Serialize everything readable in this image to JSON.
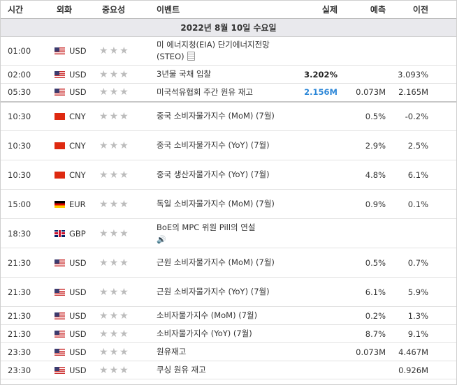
{
  "header": {
    "time": "시간",
    "currency": "외화",
    "importance": "중요성",
    "event": "이벤트",
    "actual": "실제",
    "forecast": "예측",
    "previous": "이전"
  },
  "date_label": "2022년 8월 10일 수요일",
  "icons": {
    "star": "★",
    "doc": "document-icon",
    "speaker": "🔊"
  },
  "rows": [
    {
      "time": "01:00",
      "cur": "USD",
      "flag": "us",
      "stars": 3,
      "event": "미 에너지청(EIA) 단기에너지전망(STEO)",
      "actual": "",
      "forecast": "",
      "previous": "",
      "icon": "doc"
    },
    {
      "time": "02:00",
      "cur": "USD",
      "flag": "us",
      "stars": 2,
      "event": "3년물 국채 입찰",
      "actual": "3.202%",
      "actual_color": "dark",
      "forecast": "",
      "previous": "3.093%"
    },
    {
      "time": "05:30",
      "cur": "USD",
      "flag": "us",
      "stars": 2,
      "event": "미국석유협회 주간 원유 재고",
      "actual": "2.156M",
      "actual_color": "blue",
      "forecast": "0.073M",
      "previous": "2.165M"
    },
    {
      "time": "10:30",
      "cur": "CNY",
      "flag": "cn",
      "stars": 2,
      "event": "중국 소비자물가지수 (MoM) (7월)",
      "actual": "",
      "forecast": "0.5%",
      "previous": "-0.2%"
    },
    {
      "time": "10:30",
      "cur": "CNY",
      "flag": "cn",
      "stars": 2,
      "event": "중국 소비자물가지수 (YoY) (7월)",
      "actual": "",
      "forecast": "2.9%",
      "previous": "2.5%"
    },
    {
      "time": "10:30",
      "cur": "CNY",
      "flag": "cn",
      "stars": 2,
      "event": "중국 생산자물가지수 (YoY) (7월)",
      "actual": "",
      "forecast": "4.8%",
      "previous": "6.1%"
    },
    {
      "time": "15:00",
      "cur": "EUR",
      "flag": "de",
      "stars": 2,
      "event": "독일 소비자물가지수 (MoM) (7월)",
      "actual": "",
      "forecast": "0.9%",
      "previous": "0.1%"
    },
    {
      "time": "18:30",
      "cur": "GBP",
      "flag": "gb",
      "stars": 2,
      "event": "BoE의 MPC 위원 Pill의 연설",
      "actual": "",
      "forecast": "",
      "previous": "",
      "icon": "speaker"
    },
    {
      "time": "21:30",
      "cur": "USD",
      "flag": "us",
      "stars": 3,
      "event": "근원 소비자물가지수 (MoM) (7월)",
      "actual": "",
      "forecast": "0.5%",
      "previous": "0.7%"
    },
    {
      "time": "21:30",
      "cur": "USD",
      "flag": "us",
      "stars": 3,
      "event": "근원 소비자물가지수 (YoY) (7월)",
      "actual": "",
      "forecast": "6.1%",
      "previous": "5.9%"
    },
    {
      "time": "21:30",
      "cur": "USD",
      "flag": "us",
      "stars": 3,
      "event": "소비자물가지수 (MoM) (7월)",
      "actual": "",
      "forecast": "0.2%",
      "previous": "1.3%"
    },
    {
      "time": "21:30",
      "cur": "USD",
      "flag": "us",
      "stars": 3,
      "event": "소비자물가지수 (YoY) (7월)",
      "actual": "",
      "forecast": "8.7%",
      "previous": "9.1%"
    },
    {
      "time": "23:30",
      "cur": "USD",
      "flag": "us",
      "stars": 3,
      "event": "원유재고",
      "actual": "",
      "forecast": "0.073M",
      "previous": "4.467M"
    },
    {
      "time": "23:30",
      "cur": "USD",
      "flag": "us",
      "stars": 2,
      "event": "쿠싱 원유 재고",
      "actual": "",
      "forecast": "",
      "previous": "0.926M"
    }
  ]
}
